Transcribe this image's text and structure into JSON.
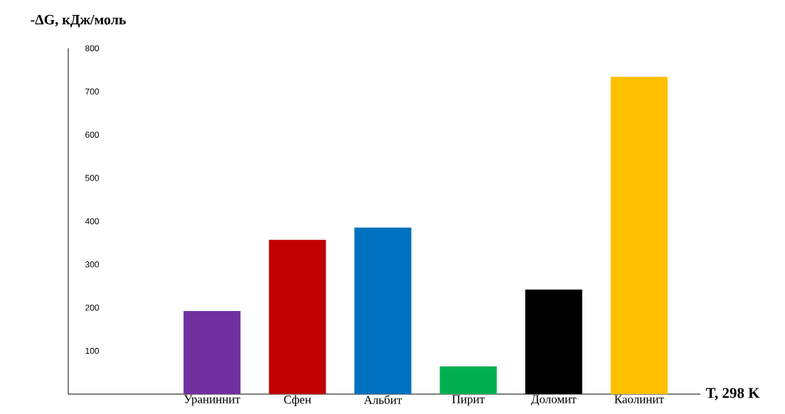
{
  "chart_data": {
    "type": "bar",
    "xlabel": "T, 298 K",
    "ylabel": "-ΔG, кДж/моль",
    "categories": [
      "Ураниннит",
      "Сфен",
      "Альбит",
      "Пирит",
      "Доломит",
      "Каолинит"
    ],
    "values": [
      192,
      357,
      385,
      64,
      242,
      734
    ],
    "colors": [
      "#7030a0",
      "#c00000",
      "#0070c0",
      "#00b050",
      "#000000",
      "#ffc000"
    ],
    "ylim": [
      0,
      800
    ],
    "yticks": [
      100,
      200,
      300,
      400,
      500,
      600,
      700,
      800
    ]
  }
}
